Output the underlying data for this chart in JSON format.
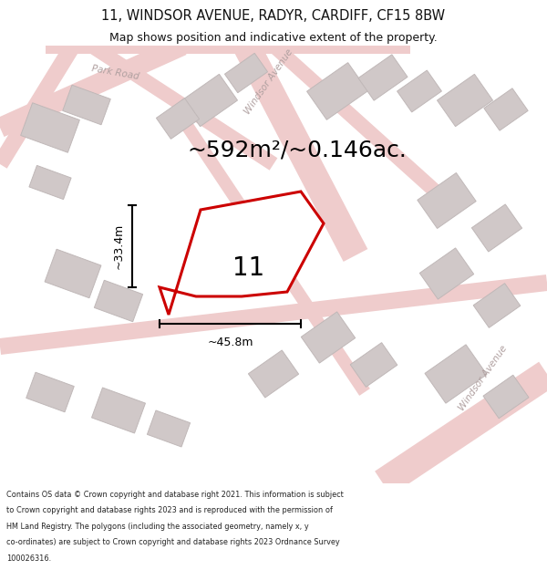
{
  "title_line1": "11, WINDSOR AVENUE, RADYR, CARDIFF, CF15 8BW",
  "title_line2": "Map shows position and indicative extent of the property.",
  "area_text": "~592m²/~0.146ac.",
  "number_label": "11",
  "dim_height": "~33.4m",
  "dim_width": "~45.8m",
  "footer_lines": [
    "Contains OS data © Crown copyright and database right 2021. This information is subject",
    "to Crown copyright and database rights 2023 and is reproduced with the permission of",
    "HM Land Registry. The polygons (including the associated geometry, namely x, y",
    "co-ordinates) are subject to Crown copyright and database rights 2023 Ordnance Survey",
    "100026316."
  ],
  "map_bg": "#f7f1f1",
  "road_color": "#efcccc",
  "building_fill": "#d0c8c8",
  "building_edge": "#c0b8b8",
  "property_color": "#cc0000",
  "road_text_color": "#b0a0a0",
  "title_color": "#111111",
  "footer_color": "#222222"
}
